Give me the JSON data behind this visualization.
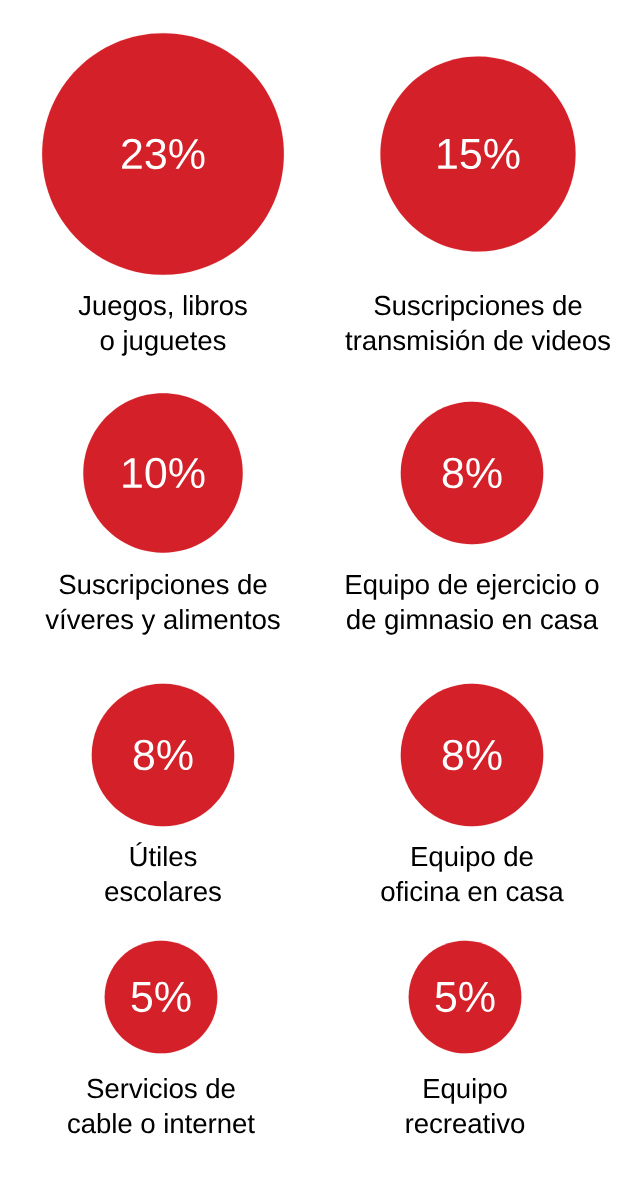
{
  "chart_data": {
    "type": "other",
    "categories": [
      "Juegos, libros o juguetes",
      "Suscripciones de transmisión de videos",
      "Suscripciones de víveres y alimentos",
      "Equipo de ejercicio o de gimnasio en casa",
      "Útiles escolares",
      "Equipo de oficina en casa",
      "Servicios de cable o internet",
      "Equipo recreativo"
    ],
    "values": [
      23,
      15,
      10,
      8,
      8,
      8,
      5,
      5
    ],
    "value_labels": [
      "23%",
      "15%",
      "10%",
      "8%",
      "8%",
      "8%",
      "5%",
      "5%"
    ],
    "color": "#d42029"
  }
}
